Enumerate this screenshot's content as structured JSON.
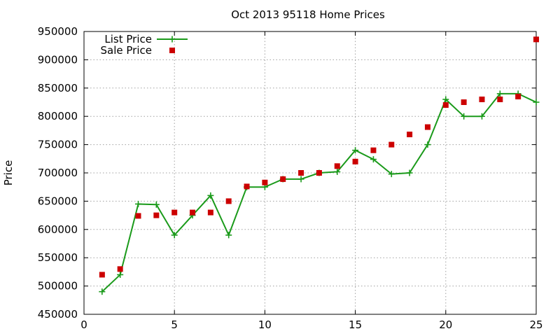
{
  "chart_data": {
    "type": "line",
    "title": "Oct 2013 95118 Home Prices",
    "xlabel": "",
    "ylabel": "Price",
    "xlim": [
      0,
      25
    ],
    "ylim": [
      450000,
      950000
    ],
    "x_ticks": [
      0,
      5,
      10,
      15,
      20,
      25
    ],
    "y_ticks": [
      450000,
      500000,
      550000,
      600000,
      650000,
      700000,
      750000,
      800000,
      850000,
      900000,
      950000
    ],
    "grid": true,
    "legend_position": "top-left",
    "series": [
      {
        "name": "List Price",
        "style": "line-with-plus-markers",
        "color": "#1a9a1a",
        "x": [
          1,
          2,
          3,
          4,
          5,
          6,
          7,
          8,
          9,
          10,
          11,
          12,
          13,
          14,
          15,
          16,
          17,
          18,
          19,
          20,
          21,
          22,
          23,
          24,
          25
        ],
        "y": [
          490000,
          520000,
          645000,
          644000,
          590000,
          625000,
          660000,
          590000,
          675000,
          675000,
          689000,
          689000,
          700000,
          702000,
          740000,
          724000,
          698000,
          700000,
          750000,
          830000,
          800000,
          800000,
          840000,
          840000,
          825000
        ]
      },
      {
        "name": "Sale Price",
        "style": "square-markers",
        "color": "#cc0000",
        "x": [
          1,
          2,
          3,
          4,
          5,
          6,
          7,
          8,
          9,
          10,
          11,
          12,
          13,
          14,
          15,
          16,
          17,
          18,
          19,
          20,
          21,
          22,
          23,
          24,
          25
        ],
        "y": [
          520000,
          530000,
          624000,
          625000,
          630000,
          630000,
          630000,
          650000,
          676000,
          683000,
          689000,
          700000,
          700000,
          712000,
          720000,
          740000,
          750000,
          768000,
          781000,
          820000,
          825000,
          830000,
          830000,
          835000,
          936000
        ]
      }
    ]
  }
}
